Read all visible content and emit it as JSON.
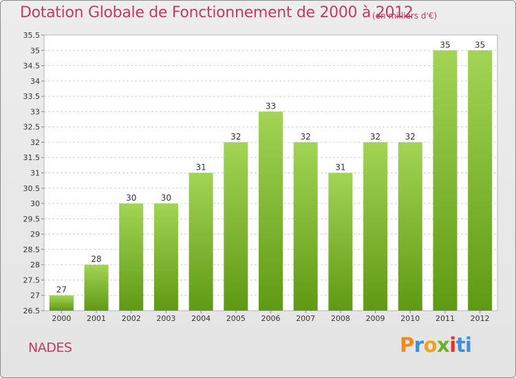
{
  "header": {
    "title": "Dotation Globale de Fonctionnement de 2000 à 2012",
    "unit": "(en milliers d'€)"
  },
  "footer": {
    "commune": "NADES",
    "logo_text": "Proxiti"
  },
  "colors": {
    "title": "#c33b63",
    "bar_light": "#a3d455",
    "bar_dark": "#5f9a14",
    "background": "#e8e8e8"
  },
  "chart_data": {
    "type": "bar",
    "title": "Dotation Globale de Fonctionnement de 2000 à 2012",
    "subtitle": "(en milliers d'€)",
    "xlabel": "",
    "ylabel": "",
    "categories": [
      "2000",
      "2001",
      "2002",
      "2003",
      "2004",
      "2005",
      "2006",
      "2007",
      "2008",
      "2009",
      "2010",
      "2011",
      "2012"
    ],
    "values": [
      27,
      28,
      30,
      30,
      31,
      32,
      33,
      32,
      31,
      32,
      32,
      35,
      35
    ],
    "data_labels": [
      "27",
      "28",
      "30",
      "30",
      "31",
      "32",
      "33",
      "32",
      "31",
      "32",
      "32",
      "35",
      "35"
    ],
    "ylim": [
      26.5,
      35.5
    ],
    "yticks": [
      "26.5",
      "27",
      "27.5",
      "28",
      "28.5",
      "29",
      "29.5",
      "30",
      "30.5",
      "31",
      "31.5",
      "32",
      "32.5",
      "33",
      "33.5",
      "34",
      "34.5",
      "35",
      "35.5"
    ],
    "grid": true,
    "legend": "none"
  }
}
